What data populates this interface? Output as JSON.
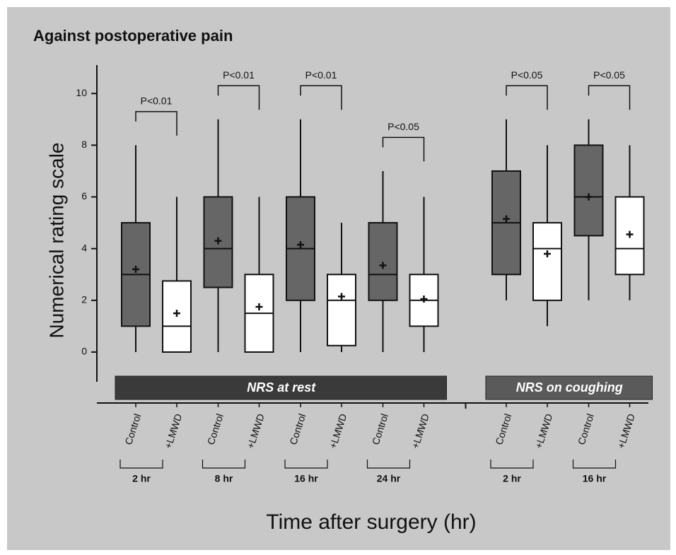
{
  "chart_data": {
    "type": "box",
    "title": "Against postoperative pain",
    "ylabel": "Numerical rating scale",
    "xlabel": "Time after surgery (hr)",
    "ylim": [
      -1.15,
      11.1
    ],
    "yticks": [
      0,
      2,
      4,
      6,
      8,
      10
    ],
    "panels": [
      {
        "label": "NRS at rest",
        "color": "#3a3a3a",
        "groups": [
          {
            "label": "2 hr",
            "p_label": "P<0.01",
            "boxes": [
              {
                "name": "Control",
                "color": "#666666",
                "min": 0,
                "q1": 1,
                "median": 3,
                "q3": 5,
                "max": 8,
                "mean": 3.2
              },
              {
                "name": "+LMWD",
                "color": "#ffffff",
                "min": 0,
                "q1": 0,
                "median": 1,
                "q3": 2.75,
                "max": 6,
                "mean": 1.5
              }
            ]
          },
          {
            "label": "8 hr",
            "p_label": "P<0.01",
            "boxes": [
              {
                "name": "Control",
                "color": "#666666",
                "min": 0,
                "q1": 2.5,
                "median": 4,
                "q3": 6,
                "max": 9,
                "mean": 4.3
              },
              {
                "name": "+LMWD",
                "color": "#ffffff",
                "min": 0,
                "q1": 0,
                "median": 1.5,
                "q3": 3,
                "max": 6,
                "mean": 1.75
              }
            ]
          },
          {
            "label": "16 hr",
            "p_label": "P<0.01",
            "boxes": [
              {
                "name": "Control",
                "color": "#666666",
                "min": 0,
                "q1": 2,
                "median": 4,
                "q3": 6,
                "max": 9,
                "mean": 4.15
              },
              {
                "name": "+LMWD",
                "color": "#ffffff",
                "min": 0,
                "q1": 0.25,
                "median": 2,
                "q3": 3,
                "max": 5,
                "mean": 2.15
              }
            ]
          },
          {
            "label": "24 hr",
            "p_label": "P<0.05",
            "boxes": [
              {
                "name": "Control",
                "color": "#666666",
                "min": 0,
                "q1": 2,
                "median": 3,
                "q3": 5,
                "max": 7,
                "mean": 3.35
              },
              {
                "name": "+LMWD",
                "color": "#ffffff",
                "min": 0,
                "q1": 1,
                "median": 2,
                "q3": 3,
                "max": 6,
                "mean": 2.05
              }
            ]
          }
        ]
      },
      {
        "label": "NRS on coughing",
        "color": "#5a5a5a",
        "groups": [
          {
            "label": "2 hr",
            "p_label": "P<0.05",
            "boxes": [
              {
                "name": "Control",
                "color": "#666666",
                "min": 2,
                "q1": 3,
                "median": 5,
                "q3": 7,
                "max": 9,
                "mean": 5.15
              },
              {
                "name": "+LMWD",
                "color": "#ffffff",
                "min": 1,
                "q1": 2,
                "median": 4,
                "q3": 5,
                "max": 8,
                "mean": 3.8
              }
            ]
          },
          {
            "label": "16 hr",
            "p_label": "P<0.05",
            "boxes": [
              {
                "name": "Control",
                "color": "#666666",
                "min": 2,
                "q1": 4.5,
                "median": 6,
                "q3": 8,
                "max": 9,
                "mean": 6.0
              },
              {
                "name": "+LMWD",
                "color": "#ffffff",
                "min": 2,
                "q1": 3,
                "median": 4,
                "q3": 6,
                "max": 8,
                "mean": 4.55
              }
            ]
          }
        ]
      }
    ]
  }
}
